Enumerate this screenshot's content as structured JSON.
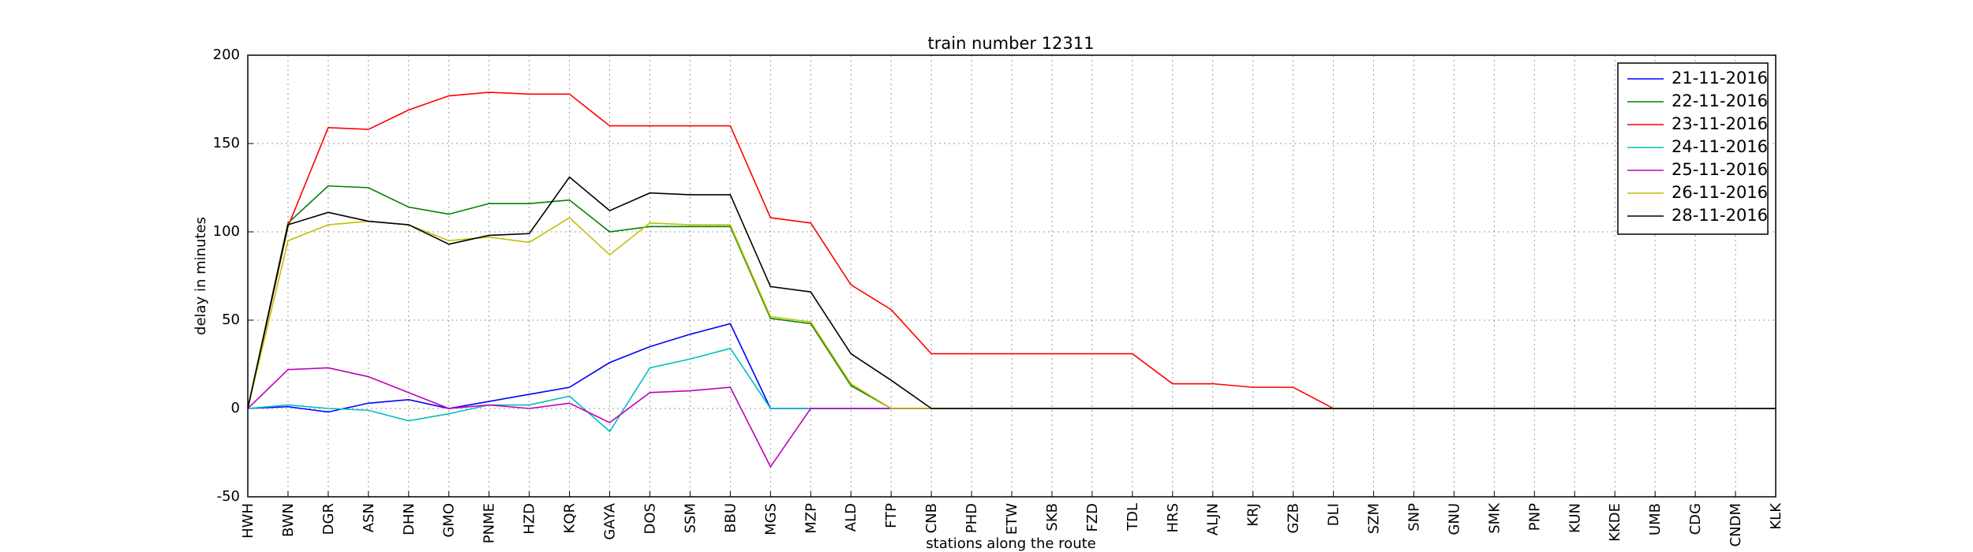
{
  "chart_data": {
    "type": "line",
    "title": "train number 12311",
    "x_label": "stations along the route",
    "y_label": "delay in minutes",
    "categories": [
      "HWH",
      "BWN",
      "DGR",
      "ASN",
      "DHN",
      "GMO",
      "PNME",
      "HZD",
      "KQR",
      "GAYA",
      "DOS",
      "SSM",
      "BBU",
      "MGS",
      "MZP",
      "ALD",
      "FTP",
      "CNB",
      "PHD",
      "ETW",
      "SKB",
      "FZD",
      "TDL",
      "HRS",
      "ALJN",
      "KRJ",
      "GZB",
      "DLI",
      "SZM",
      "SNP",
      "GNU",
      "SMK",
      "PNP",
      "KUN",
      "KKDE",
      "UMB",
      "CDG",
      "CNDM",
      "KLK"
    ],
    "series": [
      {
        "name": "21-11-2016",
        "color": "#0000ff",
        "values": [
          0,
          1,
          -2,
          3,
          5,
          0,
          4,
          8,
          12,
          26,
          35,
          42,
          48,
          0,
          0,
          0,
          0,
          0,
          0,
          0,
          0,
          0,
          0,
          0,
          0,
          0,
          0,
          0,
          0,
          0,
          0,
          0,
          0,
          0,
          0,
          0,
          0,
          0,
          0
        ]
      },
      {
        "name": "22-11-2016",
        "color": "#008000",
        "values": [
          0,
          105,
          126,
          125,
          114,
          110,
          116,
          116,
          118,
          100,
          103,
          103,
          103,
          51,
          48,
          13,
          0,
          0,
          0,
          0,
          0,
          0,
          0,
          0,
          0,
          0,
          0,
          0,
          0,
          0,
          0,
          0,
          0,
          0,
          0,
          0,
          0,
          0,
          0
        ]
      },
      {
        "name": "23-11-2016",
        "color": "#ff0000",
        "values": [
          0,
          103,
          159,
          158,
          169,
          177,
          179,
          178,
          178,
          160,
          160,
          160,
          160,
          108,
          105,
          70,
          56,
          31,
          31,
          31,
          31,
          31,
          31,
          14,
          14,
          12,
          12,
          0,
          0,
          0,
          0,
          0,
          0,
          0,
          0,
          0,
          0,
          0,
          0
        ]
      },
      {
        "name": "24-11-2016",
        "color": "#00bfbf",
        "values": [
          0,
          2,
          0,
          -1,
          -7,
          -3,
          2,
          2,
          7,
          -13,
          23,
          28,
          34,
          0,
          0,
          0,
          0,
          0,
          0,
          0,
          0,
          0,
          0,
          0,
          0,
          0,
          0,
          0,
          0,
          0,
          0,
          0,
          0,
          0,
          0,
          0,
          0,
          0,
          0
        ]
      },
      {
        "name": "25-11-2016",
        "color": "#bf00bf",
        "values": [
          0,
          22,
          23,
          18,
          9,
          0,
          2,
          0,
          3,
          -8,
          9,
          10,
          12,
          -33,
          0,
          0,
          0,
          0,
          0,
          0,
          0,
          0,
          0,
          0,
          0,
          0,
          0,
          0,
          0,
          0,
          0,
          0,
          0,
          0,
          0,
          0,
          0,
          0,
          0
        ]
      },
      {
        "name": "26-11-2016",
        "color": "#bfbf00",
        "values": [
          0,
          95,
          104,
          106,
          104,
          95,
          97,
          94,
          108,
          87,
          105,
          104,
          104,
          52,
          49,
          14,
          0,
          0,
          0,
          0,
          0,
          0,
          0,
          0,
          0,
          0,
          0,
          0,
          0,
          0,
          0,
          0,
          0,
          0,
          0,
          0,
          0,
          0,
          0
        ]
      },
      {
        "name": "28-11-2016",
        "color": "#000000",
        "values": [
          0,
          104,
          111,
          106,
          104,
          93,
          98,
          99,
          131,
          112,
          122,
          121,
          121,
          69,
          66,
          31,
          16,
          0,
          0,
          0,
          0,
          0,
          0,
          0,
          0,
          0,
          0,
          0,
          0,
          0,
          0,
          0,
          0,
          0,
          0,
          0,
          0,
          0,
          0
        ]
      }
    ],
    "ylim": [
      -50,
      200
    ],
    "yticks": [
      -50,
      0,
      50,
      100,
      150,
      200
    ],
    "grid": true,
    "legend": "upper right"
  }
}
